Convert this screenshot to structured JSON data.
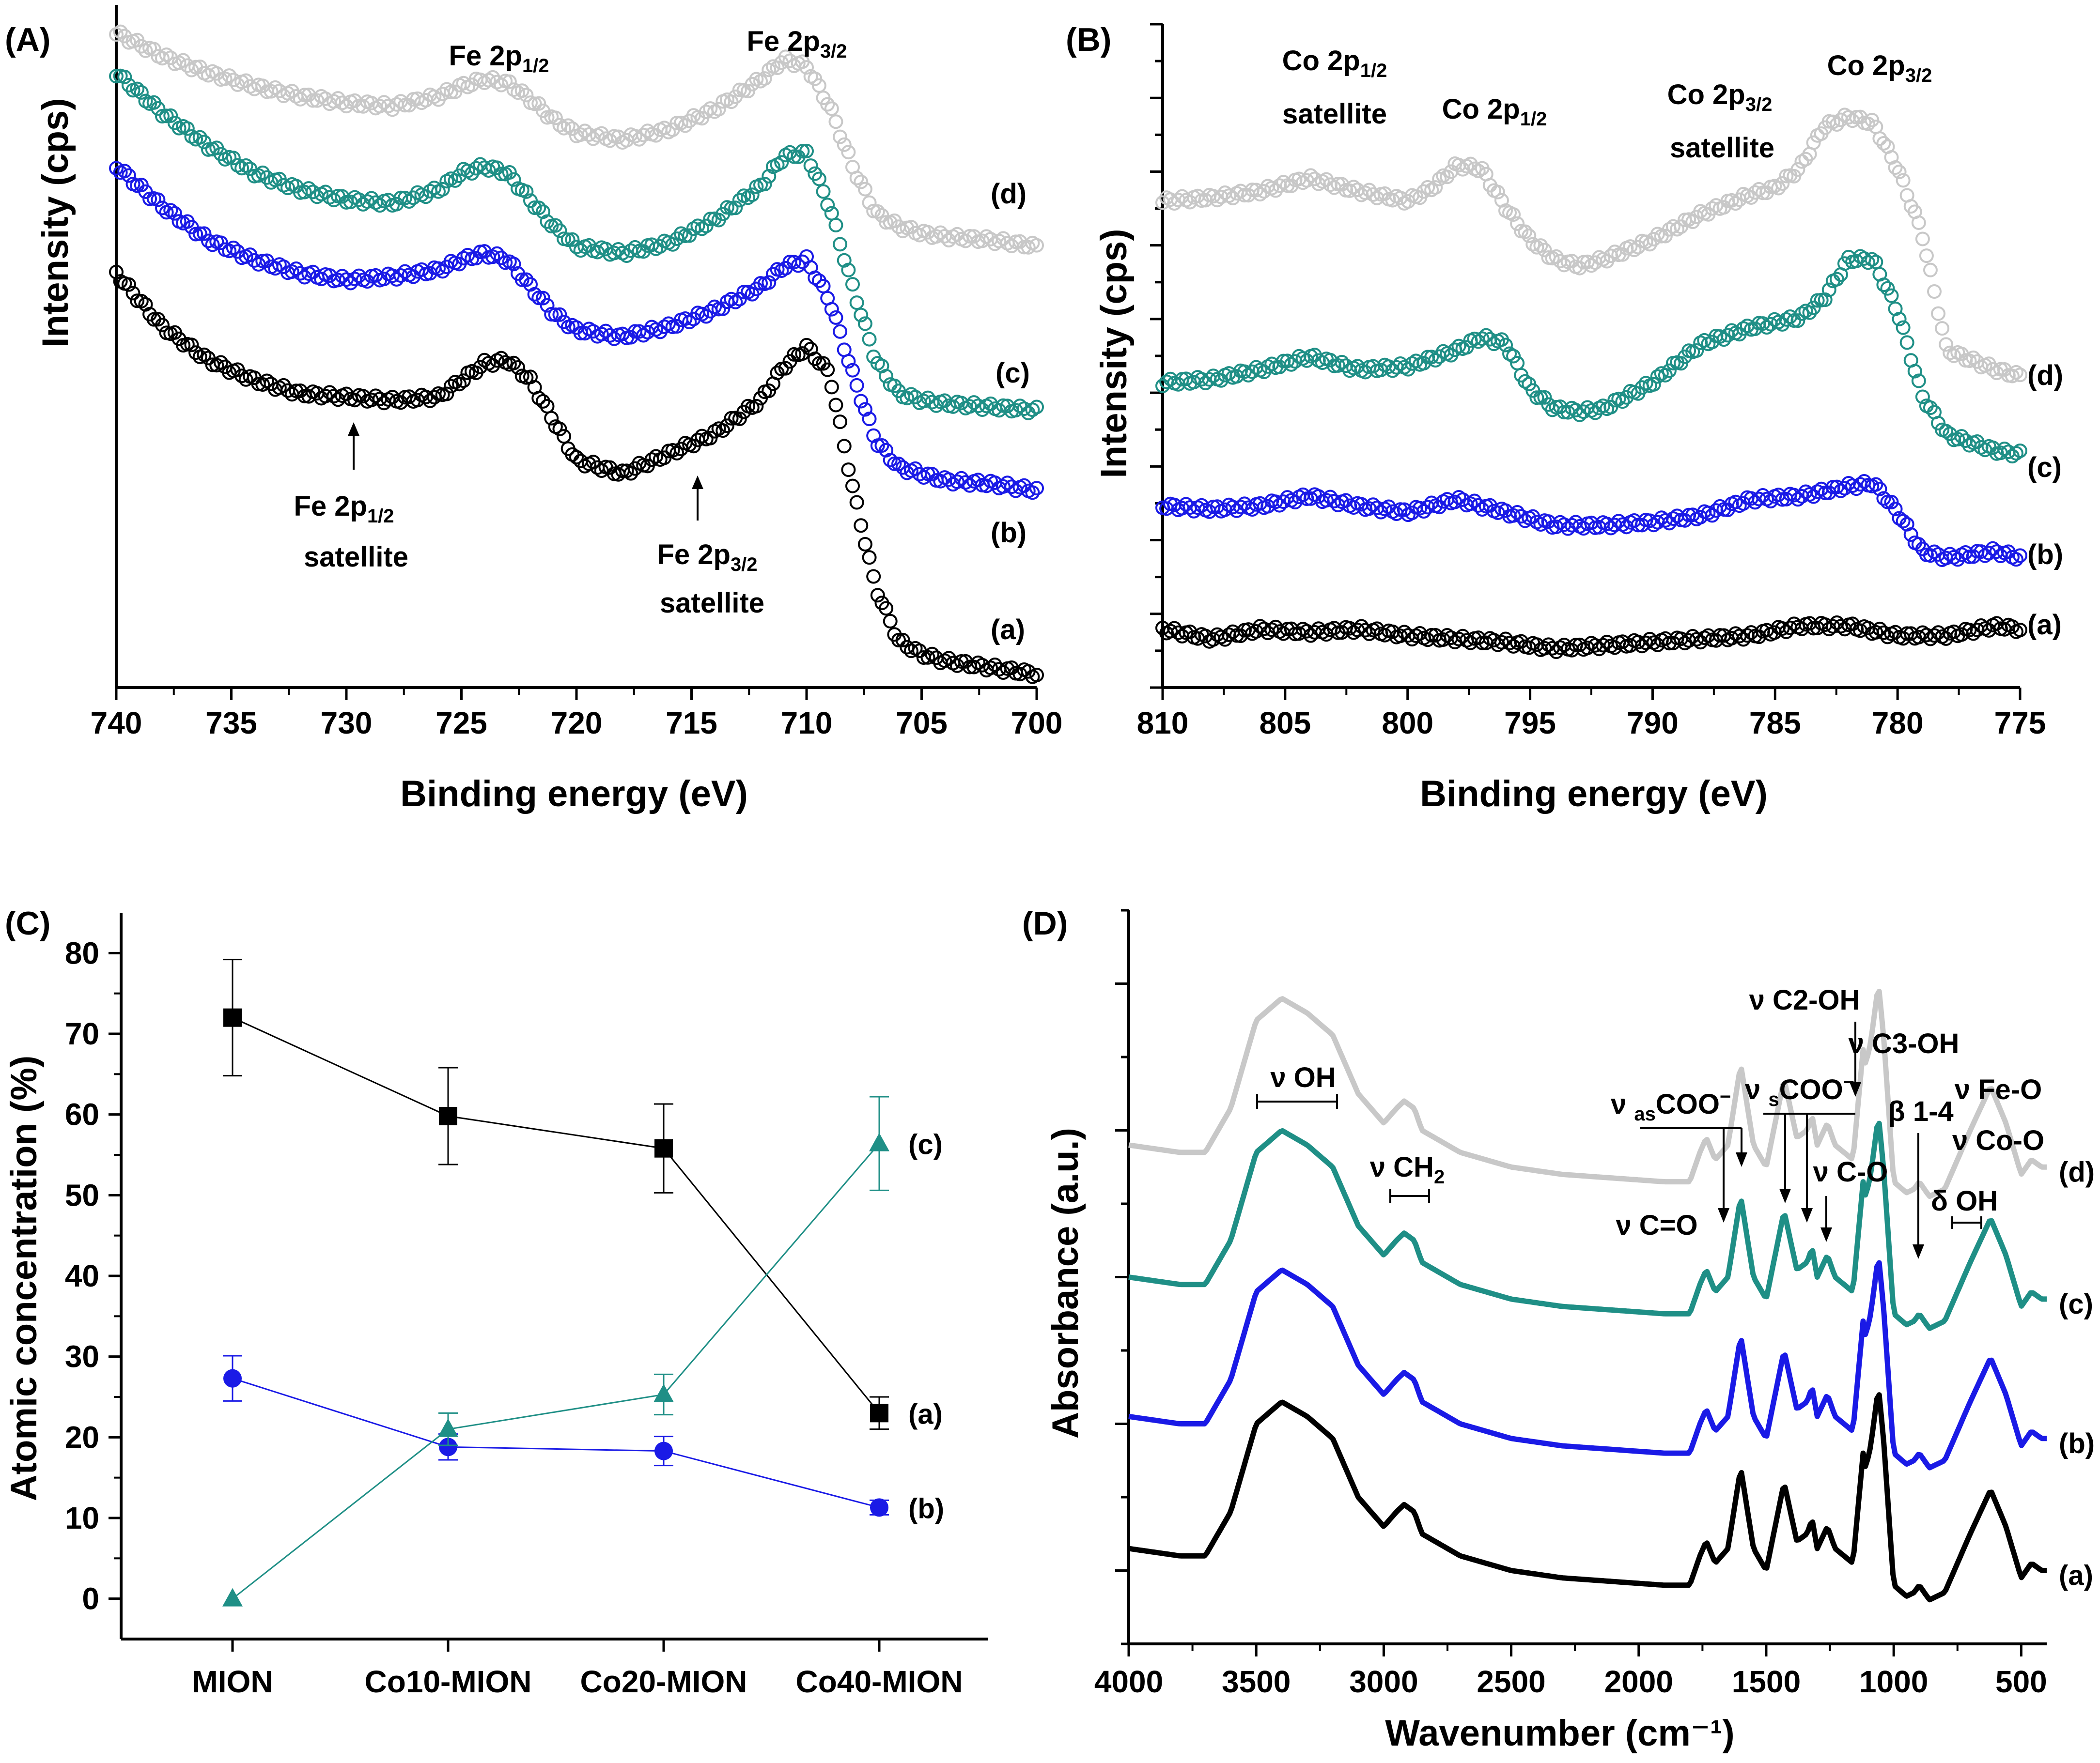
{
  "figure": {
    "panels": [
      {
        "id": "A",
        "label": "(A)"
      },
      {
        "id": "B",
        "label": "(B)"
      },
      {
        "id": "C",
        "label": "(C)"
      },
      {
        "id": "D",
        "label": "(D)"
      }
    ]
  },
  "colors": {
    "a": "#000000",
    "b": "#1a1ae6",
    "c": "#1f8f86",
    "d": "#c8c8c8",
    "axis": "#000000"
  },
  "chart_data": [
    {
      "panel": "(A)",
      "type": "scatter",
      "marker": "open-circle",
      "title": "",
      "xlabel": "Binding energy (eV)",
      "ylabel": "Intensity (cps)",
      "xlim": [
        740,
        700
      ],
      "ylim": [
        0,
        100
      ],
      "xticks": [
        740,
        735,
        730,
        725,
        720,
        715,
        710,
        705,
        700
      ],
      "series": [
        {
          "name": "(a)",
          "key": "a",
          "x": [
            740,
            738,
            736,
            734,
            732,
            730,
            728,
            726,
            725,
            724,
            723,
            722,
            721,
            720,
            718,
            716,
            714,
            712,
            711,
            710,
            709,
            708,
            707,
            706,
            705,
            704,
            702,
            700
          ],
          "y": [
            62,
            54,
            49,
            46,
            44,
            43.5,
            43,
            43.5,
            46,
            48.5,
            49,
            46,
            40,
            34,
            32,
            35,
            38,
            43,
            48,
            51,
            47,
            30,
            15,
            7,
            5,
            4,
            3,
            2
          ]
        },
        {
          "name": "(b)",
          "key": "b",
          "x": [
            740,
            738,
            736,
            734,
            732,
            730,
            728,
            726,
            725,
            724,
            723,
            722,
            721,
            720,
            718,
            716,
            714,
            712,
            711,
            710,
            709,
            708,
            707,
            706,
            705,
            704,
            702,
            700
          ],
          "y": [
            78,
            72,
            67,
            64,
            62,
            61,
            61.5,
            62.5,
            64,
            65,
            64,
            60,
            56,
            53.5,
            52.5,
            54,
            56.5,
            60,
            63,
            64,
            58,
            47,
            37,
            33,
            32,
            31,
            30.5,
            29.5
          ]
        },
        {
          "name": "(c)",
          "key": "c",
          "x": [
            740,
            738,
            736,
            734,
            732,
            730,
            728,
            726,
            725,
            724,
            723,
            722,
            721,
            720,
            718,
            716,
            714,
            712,
            711,
            710,
            709,
            708,
            707,
            706,
            705,
            704,
            702,
            700
          ],
          "y": [
            92,
            86,
            81,
            77,
            74.5,
            73,
            72.5,
            74.5,
            77,
            78,
            77,
            73,
            69,
            66,
            65,
            66.5,
            70,
            75,
            79.5,
            80,
            72,
            60,
            49,
            44,
            43,
            42.5,
            42,
            41.5
          ]
        },
        {
          "name": "(d)",
          "key": "d",
          "x": [
            740,
            738,
            736,
            734,
            732,
            730,
            728,
            726,
            725,
            724,
            723,
            722,
            721,
            720,
            718,
            716,
            714,
            712,
            711,
            710,
            709,
            708,
            707,
            706,
            705,
            704,
            702,
            700
          ],
          "y": [
            98,
            94.5,
            92,
            90,
            88.5,
            87.5,
            87,
            88.5,
            90,
            91,
            90.5,
            88,
            85,
            83,
            82,
            83.5,
            86.5,
            91,
            94,
            93,
            87,
            78,
            71,
            69,
            68,
            67.5,
            67,
            66
          ]
        }
      ],
      "annotations": {
        "fe_2p12": {
          "main": "Fe 2p",
          "sub": "1/2"
        },
        "fe_2p32": {
          "main": "Fe 2p",
          "sub": "3/2"
        },
        "fe_2p12_sat_top": {
          "main": "Fe 2p",
          "sub": "1/2"
        },
        "fe_2p12_sat_bottom": "satellite",
        "fe_2p32_sat_top": {
          "main": "Fe 2p",
          "sub": "3/2"
        },
        "fe_2p32_sat_bottom": "satellite"
      }
    },
    {
      "panel": "(B)",
      "type": "scatter",
      "marker": "open-circle",
      "title": "",
      "xlabel": "Binding energy (eV)",
      "ylabel": "Intensity (cps)",
      "xlim": [
        810,
        775
      ],
      "ylim": [
        0,
        100
      ],
      "xticks": [
        810,
        805,
        800,
        795,
        790,
        785,
        780,
        775
      ],
      "series": [
        {
          "name": "(a)",
          "key": "a",
          "x": [
            810,
            808,
            806,
            804,
            802,
            800,
            798,
            796,
            794,
            792,
            790,
            788,
            786,
            784,
            782,
            780,
            778,
            776,
            775
          ],
          "y": [
            9,
            7.5,
            9,
            8.5,
            9,
            8,
            7.5,
            7,
            6,
            6.5,
            7,
            7.5,
            8,
            9.5,
            9.5,
            8,
            8,
            9.5,
            9
          ]
        },
        {
          "name": "(b)",
          "key": "b",
          "x": [
            810,
            808,
            806,
            804,
            802,
            800,
            798,
            796,
            794,
            792,
            790,
            788,
            786,
            784,
            782,
            781,
            780,
            779,
            778,
            776,
            775
          ],
          "y": [
            28,
            27.5,
            28,
            29.5,
            28,
            27,
            29,
            27,
            25,
            25,
            25.5,
            26.5,
            29,
            29.5,
            31,
            31.5,
            27,
            21,
            20,
            21,
            20
          ]
        },
        {
          "name": "(c)",
          "key": "c",
          "x": [
            810,
            808,
            806,
            804,
            802,
            800,
            798,
            797,
            796,
            795,
            794,
            793,
            792,
            790,
            788,
            786,
            784,
            783,
            782,
            781,
            780,
            779,
            778,
            776,
            775
          ],
          "y": [
            47,
            47.5,
            49,
            51,
            49,
            49.5,
            52,
            54,
            53,
            46,
            43,
            42.5,
            43,
            47,
            53,
            55.5,
            57,
            60,
            66,
            66,
            58,
            45,
            39,
            36.5,
            36
          ]
        },
        {
          "name": "(d)",
          "key": "d",
          "x": [
            810,
            808,
            806,
            804,
            802,
            800,
            799,
            798,
            797,
            796,
            795,
            794,
            793,
            792,
            790,
            788,
            786,
            785,
            784,
            783,
            782,
            781,
            780,
            779,
            778,
            776,
            775
          ],
          "y": [
            75,
            75.5,
            76.5,
            78.5,
            76.5,
            75,
            77,
            80.5,
            80,
            74,
            69,
            66,
            65,
            66,
            69,
            73,
            76,
            77,
            80,
            86.5,
            88,
            87,
            80,
            70,
            52,
            49,
            48
          ]
        }
      ],
      "annotations": {
        "co_2p12_sat_top": {
          "main": "Co 2p",
          "sub": "1/2"
        },
        "co_2p12_sat_bottom": "satellite",
        "co_2p12": {
          "main": "Co 2p",
          "sub": "1/2"
        },
        "co_2p32_sat_top": {
          "main": "Co 2p",
          "sub": "3/2"
        },
        "co_2p32_sat_bottom": "satellite",
        "co_2p32": {
          "main": "Co 2p",
          "sub": "3/2"
        }
      }
    },
    {
      "panel": "(C)",
      "type": "line",
      "marker": "filled",
      "title": "",
      "xlabel": "",
      "ylabel": "Atomic concentration (%)",
      "ylim": [
        -5,
        85
      ],
      "yticks": [
        0,
        10,
        20,
        30,
        40,
        50,
        60,
        70,
        80
      ],
      "categories": [
        "MION",
        "Co10-MION",
        "Co20-MION",
        "Co40-MION"
      ],
      "series": [
        {
          "name": "(a)",
          "key": "a",
          "marker": "square",
          "values": [
            72,
            59.8,
            55.8,
            23
          ],
          "errors": [
            7.2,
            6,
            5.5,
            2
          ]
        },
        {
          "name": "(b)",
          "key": "b",
          "marker": "circle",
          "values": [
            27.3,
            18.8,
            18.3,
            11.3
          ],
          "errors": [
            2.8,
            1.6,
            1.8,
            0.9
          ]
        },
        {
          "name": "(c)",
          "key": "c",
          "marker": "triangle",
          "values": [
            0,
            21,
            25.3,
            56.4
          ],
          "errors": [
            0,
            2,
            2.5,
            5.8
          ]
        }
      ]
    },
    {
      "panel": "(D)",
      "type": "line",
      "title": "",
      "xlabel": "Wavenumber (cm⁻¹)",
      "ylabel": "Absorbance (a.u.)",
      "xlim": [
        4000,
        400
      ],
      "ylim": [
        0,
        100
      ],
      "xticks": [
        4000,
        3500,
        3000,
        2500,
        2000,
        1500,
        1000,
        500
      ],
      "x": [
        4000,
        3800,
        3700,
        3600,
        3500,
        3400,
        3300,
        3200,
        3100,
        3000,
        2950,
        2920,
        2880,
        2850,
        2700,
        2500,
        2300,
        2100,
        1900,
        1800,
        1760,
        1735,
        1700,
        1650,
        1600,
        1550,
        1500,
        1430,
        1380,
        1340,
        1320,
        1300,
        1260,
        1230,
        1160,
        1120,
        1110,
        1090,
        1060,
        1040,
        1000,
        950,
        920,
        900,
        860,
        800,
        700,
        620,
        560,
        500,
        460,
        420
      ],
      "series": [
        {
          "name": "(a)",
          "key": "a",
          "offset": 0,
          "y": [
            13,
            12,
            12,
            18,
            30,
            33,
            31,
            28,
            20,
            16,
            18,
            19,
            18,
            15,
            12,
            10,
            9,
            8.5,
            8,
            8,
            12,
            14,
            11,
            13,
            24,
            13,
            10,
            22,
            14,
            15,
            17,
            13,
            16,
            13,
            11,
            26,
            24,
            27,
            35,
            28,
            8,
            6.5,
            7,
            8,
            6,
            7,
            15,
            21,
            16,
            9,
            11,
            10
          ]
        },
        {
          "name": "(b)",
          "key": "b",
          "offset": 18,
          "y": [
            13,
            12,
            12,
            18,
            30,
            33,
            31,
            28,
            20,
            16,
            18,
            19,
            18,
            15,
            12,
            10,
            9,
            8.5,
            8,
            8,
            12,
            14,
            11,
            13,
            24,
            13,
            10,
            22,
            14,
            15,
            17,
            13,
            16,
            13,
            11,
            26,
            24,
            27,
            35,
            28,
            8,
            6.5,
            7,
            8,
            6,
            7,
            15,
            21,
            16,
            9,
            11,
            10
          ]
        },
        {
          "name": "(c)",
          "key": "c",
          "offset": 37,
          "y": [
            13,
            12,
            12,
            18,
            30,
            33,
            31,
            28,
            20,
            16,
            18,
            19,
            18,
            15,
            12,
            10,
            9,
            8.5,
            8,
            8,
            12,
            14,
            11,
            13,
            24,
            13,
            10,
            22,
            14,
            15,
            17,
            13,
            16,
            13,
            11,
            26,
            24,
            27,
            35,
            28,
            8,
            6.5,
            7,
            8,
            6,
            7,
            15,
            21,
            16,
            9,
            11,
            10
          ]
        },
        {
          "name": "(d)",
          "key": "d",
          "offset": 55,
          "y": [
            13,
            12,
            12,
            18,
            30,
            33,
            31,
            28,
            20,
            16,
            18,
            19,
            18,
            15,
            12,
            10,
            9,
            8.5,
            8,
            8,
            12,
            14,
            11,
            13,
            24,
            13,
            10,
            22,
            14,
            15,
            17,
            13,
            16,
            13,
            11,
            26,
            24,
            27,
            35,
            28,
            8,
            6.5,
            7,
            8,
            6,
            7,
            15,
            21,
            16,
            9,
            11,
            10
          ]
        }
      ],
      "annotations": {
        "nu_oh": "ν OH",
        "nu_ch2": "ν CH",
        "nu_ch2_sub": "2",
        "nu_co_double": "ν C=O",
        "nu_as_coo": {
          "nu": "ν ",
          "sub": "as",
          "main": "COO",
          "sup": "−"
        },
        "nu_s_coo": {
          "nu": "ν ",
          "sub": "s",
          "main": "COO",
          "sup": "−"
        },
        "nu_c2oh": "ν C2-OH",
        "nu_c3oh": "ν C3-OH",
        "nu_co_single": "ν C-O",
        "beta_14": "β 1-4",
        "nu_feo": "ν Fe-O",
        "nu_coo_metal": "ν Co-O",
        "delta_oh": "δ OH"
      }
    }
  ]
}
